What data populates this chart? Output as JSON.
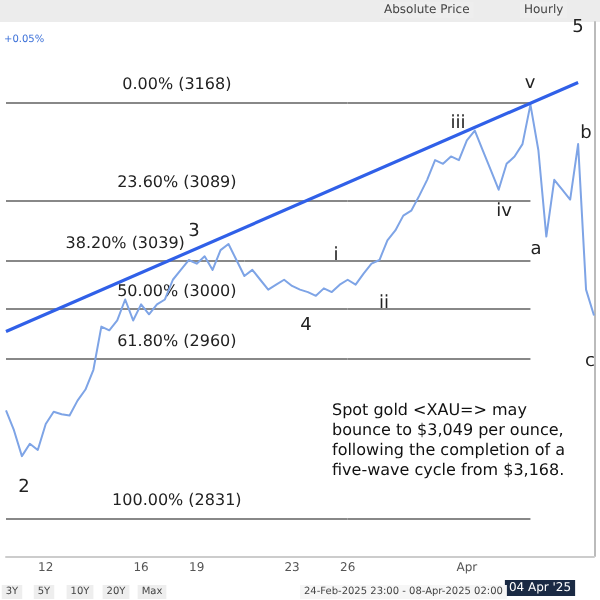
{
  "chart_data": {
    "type": "line",
    "categories": [
      null,
      null,
      null,
      null,
      null,
      "12",
      null,
      null,
      null,
      null,
      null,
      null,
      null,
      null,
      null,
      null,
      null,
      "16",
      null,
      null,
      null,
      null,
      null,
      null,
      "19",
      null,
      null,
      null,
      null,
      null,
      null,
      null,
      null,
      null,
      null,
      null,
      "23",
      null,
      null,
      null,
      null,
      null,
      null,
      "26",
      null,
      null,
      null,
      null,
      null,
      null,
      null,
      null,
      null,
      null,
      null,
      null,
      null,
      null,
      "Apr",
      null,
      null,
      null,
      null,
      null,
      null,
      null,
      null,
      null,
      null,
      null,
      null,
      null,
      null,
      null,
      null
    ],
    "series": [
      {
        "color": "#7ea4e6",
        "values": [
          2918,
          2902,
          2881,
          2891,
          2886,
          2907,
          2917,
          2915,
          2914,
          2926,
          2935,
          2951,
          2986,
          2983,
          2991,
          3008,
          2991,
          3004,
          2996,
          3004,
          3008,
          3024,
          3032,
          3040,
          3037,
          3043,
          3032,
          3048,
          3053,
          3040,
          3027,
          3032,
          3024,
          3016,
          3020,
          3024,
          3019,
          3016,
          3014,
          3011,
          3017,
          3014,
          3020,
          3024,
          3020,
          3029,
          3037,
          3040,
          3056,
          3064,
          3076,
          3080,
          3092,
          3105,
          3121,
          3118,
          3124,
          3121,
          3137,
          3145,
          3129,
          3113,
          3097,
          3118,
          3124,
          3134,
          3166,
          3129,
          3059,
          3105,
          3097,
          3089,
          3134,
          3016,
          2995
        ]
      },
      {
        "type": "line",
        "color": "#3060e8",
        "values": [
          2982,
          null,
          null,
          null,
          null,
          null,
          null,
          null,
          null,
          null,
          null,
          null,
          null,
          null,
          null,
          null,
          null,
          null,
          null,
          null,
          null,
          null,
          null,
          null,
          null,
          null,
          null,
          null,
          null,
          null,
          null,
          null,
          null,
          null,
          null,
          null,
          null,
          null,
          null,
          null,
          null,
          null,
          null,
          null,
          null,
          null,
          null,
          null,
          null,
          null,
          null,
          null,
          null,
          null,
          null,
          null,
          null,
          null,
          null,
          null,
          null,
          null,
          null,
          null,
          null,
          null,
          null,
          null,
          null,
          null,
          null,
          null,
          3184,
          null,
          null
        ]
      }
    ],
    "ylim": [
      2800,
      3233
    ],
    "tick_labels": "x",
    "grid": false,
    "marker": "none",
    "ref_lines": [
      {
        "axis": "y",
        "value": 3168,
        "label": "0.00% (3168)",
        "color": "#888888"
      },
      {
        "axis": "y",
        "value": 3089,
        "label": "23.60% (3089)",
        "color": "#888888"
      },
      {
        "axis": "y",
        "value": 3039,
        "label": "38.20% (3039)",
        "color": "#888888"
      },
      {
        "axis": "y",
        "value": 3000,
        "label": "50.00% (3000)",
        "color": "#888888"
      },
      {
        "axis": "y",
        "value": 2960,
        "label": "61.80% (2960)",
        "color": "#888888"
      },
      {
        "axis": "y",
        "value": 2831,
        "label": "100.00% (2831)",
        "color": "#888888"
      }
    ],
    "annotations": [
      "2",
      "3",
      "4",
      "5",
      "i",
      "ii",
      "iii",
      "iv",
      "v",
      "a",
      "b",
      "c",
      "Spot gold <XAU=> may bounce to $3,049 per ounce, following the completion of a five-wave cycle from $3,168.",
      "04 Apr '25",
      "+0.05%",
      "Absolute Price",
      "Hourly",
      "3Y",
      "5Y",
      "10Y",
      "20Y",
      "Max",
      "24-Feb-2025 23:00 - 08-Apr-2025 02:00"
    ]
  }
}
